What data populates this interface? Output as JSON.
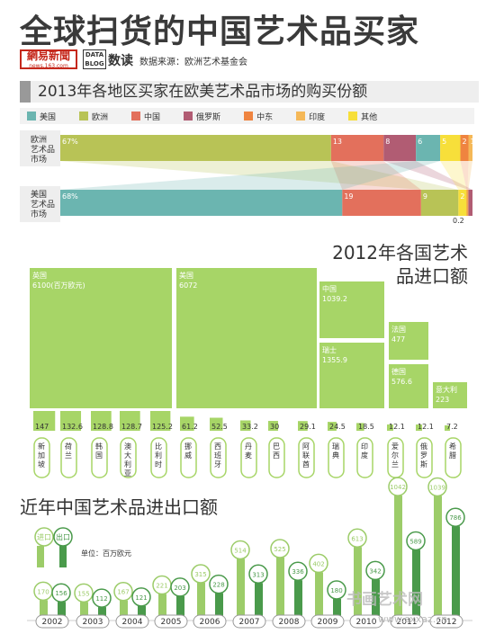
{
  "header": {
    "title": "全球扫货的中国艺术品买家",
    "logo_main": "網易新聞",
    "logo_sub": "news.163.com",
    "datablog": "DATA BLOG",
    "brand": "数读",
    "source": "数据来源：欧洲艺术基金会"
  },
  "colors": {
    "us": "#6bb5b0",
    "europe": "#b8c356",
    "china": "#e3705c",
    "russia": "#b15c73",
    "middle_east": "#ef8440",
    "india": "#f5b857",
    "other": "#f7df3a",
    "import_green": "#a7d567",
    "dark_green": "#4a9a4b",
    "light_green": "#9ccc69"
  },
  "chart_data": [
    {
      "type": "bar",
      "title": "2013年各地区买家在欧美艺术品市场的购买份额",
      "legend": [
        "美国",
        "欧洲",
        "中国",
        "俄罗斯",
        "中东",
        "印度",
        "其他"
      ],
      "categories": [
        "欧洲艺术品市场",
        "美国艺术品市场"
      ],
      "series": [
        {
          "name": "美国",
          "values": [
            6,
            68
          ],
          "labels": [
            "6",
            "68%"
          ]
        },
        {
          "name": "欧洲",
          "values": [
            67,
            9
          ],
          "labels": [
            "67%",
            "9"
          ]
        },
        {
          "name": "中国",
          "values": [
            13,
            19
          ],
          "labels": [
            "13",
            "19"
          ]
        },
        {
          "name": "俄罗斯",
          "values": [
            8,
            1
          ],
          "labels": [
            "8",
            ""
          ]
        },
        {
          "name": "中东",
          "values": [
            2,
            0.2
          ],
          "labels": [
            "2",
            "0.2"
          ]
        },
        {
          "name": "印度",
          "values": [
            1,
            0.2
          ],
          "labels": [
            "1",
            ""
          ]
        },
        {
          "name": "其他",
          "values": [
            5,
            2
          ],
          "labels": [
            "5",
            "2"
          ]
        }
      ]
    },
    {
      "type": "bar",
      "title": "2012年各国艺术品进口额",
      "unit_label": "6100(百万欧元)",
      "big": [
        {
          "name": "英国",
          "value": 6100,
          "label": "6100(百万欧元)"
        },
        {
          "name": "美国",
          "value": 6072,
          "label": "6072"
        },
        {
          "name": "中国",
          "value": 1039.2,
          "label": "1039.2"
        },
        {
          "name": "瑞士",
          "value": 1355.9,
          "label": "1355.9"
        },
        {
          "name": "法国",
          "value": 477,
          "label": "477"
        },
        {
          "name": "德国",
          "value": 576.6,
          "label": "576.6"
        },
        {
          "name": "意大利",
          "value": 223,
          "label": "223"
        }
      ],
      "small": [
        {
          "name": "新加坡",
          "value": 147,
          "label": "147"
        },
        {
          "name": "荷兰",
          "value": 132.6,
          "label": "132.6"
        },
        {
          "name": "韩国",
          "value": 128.8,
          "label": "128.8"
        },
        {
          "name": "澳大利亚",
          "value": 128.7,
          "label": "128.7"
        },
        {
          "name": "比利时",
          "value": 125.2,
          "label": "125.2"
        },
        {
          "name": "挪威",
          "value": 61.2,
          "label": "61.2"
        },
        {
          "name": "西班牙",
          "value": 52.5,
          "label": "52.5"
        },
        {
          "name": "丹麦",
          "value": 33.2,
          "label": "33.2"
        },
        {
          "name": "巴西",
          "value": 30,
          "label": "30"
        },
        {
          "name": "阿联酋",
          "value": 29.1,
          "label": "29.1"
        },
        {
          "name": "瑞典",
          "value": 24.5,
          "label": "24.5"
        },
        {
          "name": "印度",
          "value": 18.5,
          "label": "18.5"
        },
        {
          "name": "爱尔兰",
          "value": 12.1,
          "label": "12.1"
        },
        {
          "name": "俄罗斯",
          "value": 12.1,
          "label": "12.1"
        },
        {
          "name": "希腊",
          "value": 7.2,
          "label": "7.2"
        }
      ]
    },
    {
      "type": "bar",
      "title": "近年中国艺术品进出口额",
      "unit": "单位：百万欧元",
      "legend": [
        "进口",
        "出口"
      ],
      "categories": [
        "2002",
        "2003",
        "2004",
        "2005",
        "2006",
        "2007",
        "2008",
        "2009",
        "2010",
        "2011",
        "2012"
      ],
      "series": [
        {
          "name": "进口",
          "values": [
            170,
            155,
            167,
            221,
            315,
            514,
            525,
            402,
            613,
            1042,
            1039
          ]
        },
        {
          "name": "出口",
          "values": [
            156,
            112,
            121,
            203,
            228,
            313,
            336,
            180,
            342,
            589,
            786
          ]
        }
      ]
    }
  ],
  "watermark": "书画艺术网",
  "watermark_url": "www.sxxaz.cn"
}
